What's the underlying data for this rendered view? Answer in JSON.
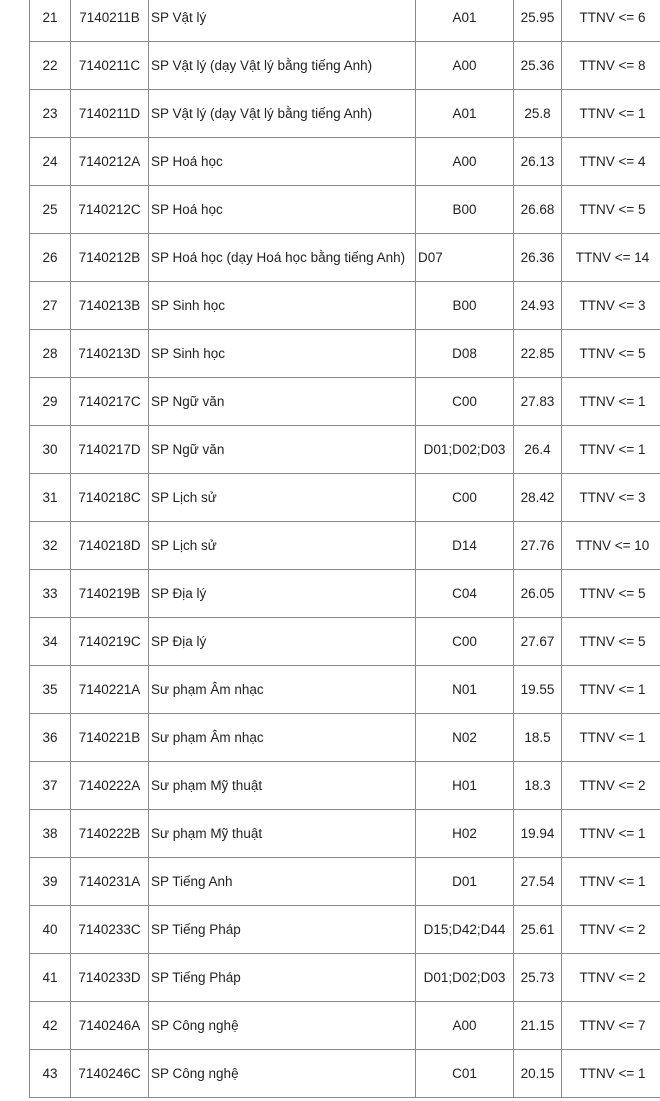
{
  "rows": [
    {
      "stt": "21",
      "code": "7140211B",
      "name": "SP Vật lý",
      "combo": "A01",
      "score": "25.95",
      "ttnv": "TTNV <= 6"
    },
    {
      "stt": "22",
      "code": "7140211C",
      "name": "SP Vật lý (dạy Vật lý bằng tiếng Anh)",
      "combo": "A00",
      "score": "25.36",
      "ttnv": "TTNV <= 8"
    },
    {
      "stt": "23",
      "code": "7140211D",
      "name": "SP Vật lý (dạy Vật lý bằng tiếng Anh)",
      "combo": "A01",
      "score": "25.8",
      "ttnv": "TTNV <= 1"
    },
    {
      "stt": "24",
      "code": "7140212A",
      "name": "SP Hoá học",
      "combo": "A00",
      "score": "26.13",
      "ttnv": "TTNV <= 4"
    },
    {
      "stt": "25",
      "code": "7140212C",
      "name": "SP Hoá học",
      "combo": "B00",
      "score": "26.68",
      "ttnv": "TTNV <= 5"
    },
    {
      "stt": "26",
      "code": "7140212B",
      "name": "SP Hoá học (dạy Hoá học bằng tiếng Anh)",
      "combo": "D07",
      "score": "26.36",
      "ttnv": "TTNV <= 14"
    },
    {
      "stt": "27",
      "code": "7140213B",
      "name": "SP Sinh học",
      "combo": "B00",
      "score": "24.93",
      "ttnv": "TTNV <= 3"
    },
    {
      "stt": "28",
      "code": "7140213D",
      "name": "SP Sinh học",
      "combo": "D08",
      "score": "22.85",
      "ttnv": "TTNV <= 5"
    },
    {
      "stt": "29",
      "code": "7140217C",
      "name": "SP Ngữ văn",
      "combo": "C00",
      "score": "27.83",
      "ttnv": "TTNV <= 1"
    },
    {
      "stt": "30",
      "code": "7140217D",
      "name": "SP Ngữ văn",
      "combo": "D01;D02;D03",
      "score": "26.4",
      "ttnv": "TTNV <= 1"
    },
    {
      "stt": "31",
      "code": "7140218C",
      "name": "SP Lịch sử",
      "combo": "C00",
      "score": "28.42",
      "ttnv": "TTNV <= 3"
    },
    {
      "stt": "32",
      "code": "7140218D",
      "name": "SP Lịch sử",
      "combo": "D14",
      "score": "27.76",
      "ttnv": "TTNV <= 10"
    },
    {
      "stt": "33",
      "code": "7140219B",
      "name": "SP Địa lý",
      "combo": "C04",
      "score": "26.05",
      "ttnv": "TTNV <= 5"
    },
    {
      "stt": "34",
      "code": "7140219C",
      "name": "SP Địa lý",
      "combo": "C00",
      "score": "27.67",
      "ttnv": "TTNV <= 5"
    },
    {
      "stt": "35",
      "code": "7140221A",
      "name": "Sư phạm Âm nhạc",
      "combo": "N01",
      "score": "19.55",
      "ttnv": "TTNV <= 1"
    },
    {
      "stt": "36",
      "code": "7140221B",
      "name": "Sư phạm Âm nhạc",
      "combo": "N02",
      "score": "18.5",
      "ttnv": "TTNV <= 1"
    },
    {
      "stt": "37",
      "code": "7140222A",
      "name": "Sư phạm Mỹ thuật",
      "combo": "H01",
      "score": "18.3",
      "ttnv": "TTNV <= 2"
    },
    {
      "stt": "38",
      "code": "7140222B",
      "name": "Sư phạm Mỹ thuật",
      "combo": "H02",
      "score": "19.94",
      "ttnv": "TTNV <= 1"
    },
    {
      "stt": "39",
      "code": "7140231A",
      "name": "SP Tiếng Anh",
      "combo": "D01",
      "score": "27.54",
      "ttnv": "TTNV <= 1"
    },
    {
      "stt": "40",
      "code": "7140233C",
      "name": "SP Tiếng Pháp",
      "combo": "D15;D42;D44",
      "score": "25.61",
      "ttnv": "TTNV <= 2"
    },
    {
      "stt": "41",
      "code": "7140233D",
      "name": "SP Tiếng Pháp",
      "combo": "D01;D02;D03",
      "score": "25.73",
      "ttnv": "TTNV <= 2"
    },
    {
      "stt": "42",
      "code": "7140246A",
      "name": "SP Công nghệ",
      "combo": "A00",
      "score": "21.15",
      "ttnv": "TTNV <= 7"
    },
    {
      "stt": "43",
      "code": "7140246C",
      "name": "SP Công nghệ",
      "combo": "C01",
      "score": "20.15",
      "ttnv": "TTNV <= 1"
    }
  ]
}
